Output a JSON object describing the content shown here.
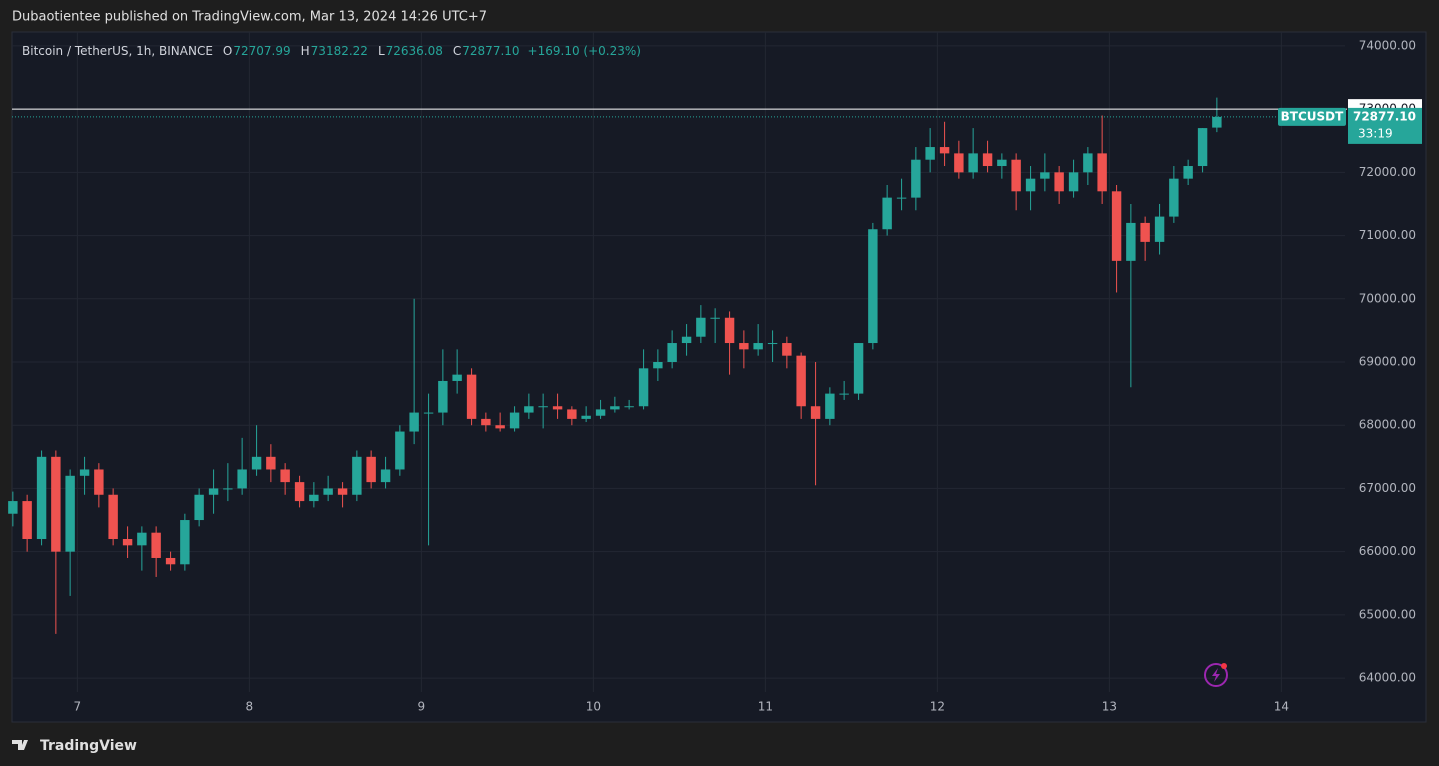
{
  "header": {
    "title": "Dubaotientee published on TradingView.com, Mar 13, 2024 14:26 UTC+7"
  },
  "footer": {
    "brand": "TradingView"
  },
  "chart_data": {
    "type": "candlestick",
    "legend": {
      "symbol": "Bitcoin / TetherUS, 1h, BINANCE",
      "open_label": "O",
      "open": "72707.99",
      "high_label": "H",
      "high": "73182.22",
      "low_label": "L",
      "low": "72636.08",
      "close_label": "C",
      "close": "72877.10",
      "change": "+169.10 (+0.23%)"
    },
    "up_color": "#26a69a",
    "down_color": "#ef5350",
    "grid": true,
    "xlim": [
      6.62,
      14.37
    ],
    "ylim": [
      63780,
      74220
    ],
    "xticks": [
      7,
      8,
      9,
      10,
      11,
      12,
      13,
      14
    ],
    "yticks": [
      {
        "value": 64000,
        "label": "64000.00"
      },
      {
        "value": 65000,
        "label": "65000.00"
      },
      {
        "value": 66000,
        "label": "66000.00"
      },
      {
        "value": 67000,
        "label": "67000.00"
      },
      {
        "value": 68000,
        "label": "68000.00"
      },
      {
        "value": 69000,
        "label": "69000.00"
      },
      {
        "value": 70000,
        "label": "70000.00"
      },
      {
        "value": 71000,
        "label": "71000.00"
      },
      {
        "value": 72000,
        "label": "72000.00"
      },
      {
        "value": 73000,
        "label": "73000.00"
      },
      {
        "value": 74000,
        "label": "74000.00"
      }
    ],
    "hline": {
      "value": 73000,
      "label": "73000.00"
    },
    "last_price": {
      "value": 72877.1,
      "label": "72877.10",
      "symbol": "BTCUSDT",
      "countdown": "33:19"
    },
    "x": [
      6.625,
      6.708,
      6.792,
      6.875,
      6.958,
      7.042,
      7.125,
      7.208,
      7.292,
      7.375,
      7.458,
      7.542,
      7.625,
      7.708,
      7.792,
      7.875,
      7.958,
      8.042,
      8.125,
      8.208,
      8.292,
      8.375,
      8.458,
      8.542,
      8.625,
      8.708,
      8.792,
      8.875,
      8.958,
      9.042,
      9.125,
      9.208,
      9.292,
      9.375,
      9.458,
      9.542,
      9.625,
      9.708,
      9.792,
      9.875,
      9.958,
      10.042,
      10.125,
      10.208,
      10.292,
      10.375,
      10.458,
      10.542,
      10.625,
      10.708,
      10.792,
      10.875,
      10.958,
      11.042,
      11.125,
      11.208,
      11.292,
      11.375,
      11.458,
      11.542,
      11.625,
      11.708,
      11.792,
      11.875,
      11.958,
      12.042,
      12.125,
      12.208,
      12.292,
      12.375,
      12.458,
      12.542,
      12.625,
      12.708,
      12.792,
      12.875,
      12.958,
      13.042,
      13.125,
      13.208,
      13.292,
      13.375,
      13.458,
      13.542,
      13.625
    ],
    "candles": [
      [
        66600,
        66950,
        66400,
        66800
      ],
      [
        66800,
        66900,
        66000,
        66200
      ],
      [
        66200,
        67600,
        66100,
        67500
      ],
      [
        67500,
        67600,
        64700,
        66000
      ],
      [
        66000,
        67300,
        65300,
        67200
      ],
      [
        67200,
        67500,
        66900,
        67300
      ],
      [
        67300,
        67400,
        66700,
        66900
      ],
      [
        66900,
        67000,
        66100,
        66200
      ],
      [
        66200,
        66400,
        65900,
        66100
      ],
      [
        66100,
        66400,
        65700,
        66300
      ],
      [
        66300,
        66400,
        65600,
        65900
      ],
      [
        65900,
        66000,
        65700,
        65800
      ],
      [
        65800,
        66600,
        65700,
        66500
      ],
      [
        66500,
        67000,
        66400,
        66900
      ],
      [
        66900,
        67300,
        66600,
        67000
      ],
      [
        67000,
        67400,
        66800,
        67000
      ],
      [
        67000,
        67800,
        66900,
        67300
      ],
      [
        67300,
        68000,
        67200,
        67500
      ],
      [
        67500,
        67700,
        67100,
        67300
      ],
      [
        67300,
        67400,
        66900,
        67100
      ],
      [
        67100,
        67200,
        66700,
        66800
      ],
      [
        66800,
        67100,
        66700,
        66900
      ],
      [
        66900,
        67200,
        66800,
        67000
      ],
      [
        67000,
        67100,
        66700,
        66900
      ],
      [
        66900,
        67600,
        66800,
        67500
      ],
      [
        67500,
        67600,
        67000,
        67100
      ],
      [
        67100,
        67500,
        67000,
        67300
      ],
      [
        67300,
        68000,
        67200,
        67900
      ],
      [
        67900,
        70000,
        67700,
        68200
      ],
      [
        68200,
        68500,
        66100,
        68200
      ],
      [
        68200,
        69200,
        68000,
        68700
      ],
      [
        68700,
        69200,
        68500,
        68800
      ],
      [
        68800,
        68900,
        68000,
        68100
      ],
      [
        68100,
        68200,
        67900,
        68000
      ],
      [
        68000,
        68200,
        67900,
        67950
      ],
      [
        67950,
        68300,
        67900,
        68200
      ],
      [
        68200,
        68500,
        68100,
        68300
      ],
      [
        68300,
        68500,
        67950,
        68300
      ],
      [
        68300,
        68500,
        68100,
        68250
      ],
      [
        68250,
        68300,
        68000,
        68100
      ],
      [
        68100,
        68300,
        68050,
        68150
      ],
      [
        68150,
        68400,
        68100,
        68250
      ],
      [
        68250,
        68450,
        68200,
        68300
      ],
      [
        68300,
        68400,
        68250,
        68300
      ],
      [
        68300,
        69200,
        68250,
        68900
      ],
      [
        68900,
        69200,
        68700,
        69000
      ],
      [
        69000,
        69500,
        68900,
        69300
      ],
      [
        69300,
        69600,
        69100,
        69400
      ],
      [
        69400,
        69900,
        69300,
        69700
      ],
      [
        69700,
        69850,
        69300,
        69700
      ],
      [
        69700,
        69800,
        68800,
        69300
      ],
      [
        69300,
        69500,
        68900,
        69200
      ],
      [
        69200,
        69600,
        69100,
        69300
      ],
      [
        69300,
        69500,
        69000,
        69300
      ],
      [
        69300,
        69400,
        68900,
        69100
      ],
      [
        69100,
        69150,
        68100,
        68300
      ],
      [
        68300,
        69000,
        67050,
        68100
      ],
      [
        68100,
        68600,
        68000,
        68500
      ],
      [
        68500,
        68700,
        68400,
        68500
      ],
      [
        68500,
        69300,
        68400,
        69300
      ],
      [
        69300,
        71200,
        69200,
        71100
      ],
      [
        71100,
        71800,
        71000,
        71600
      ],
      [
        71600,
        71900,
        71400,
        71600
      ],
      [
        71600,
        72400,
        71400,
        72200
      ],
      [
        72200,
        72700,
        72000,
        72400
      ],
      [
        72400,
        72800,
        72100,
        72300
      ],
      [
        72300,
        72500,
        71900,
        72000
      ],
      [
        72000,
        72700,
        71900,
        72300
      ],
      [
        72300,
        72500,
        72000,
        72100
      ],
      [
        72100,
        72300,
        71900,
        72200
      ],
      [
        72200,
        72300,
        71400,
        71700
      ],
      [
        71700,
        72100,
        71400,
        71900
      ],
      [
        71900,
        72300,
        71700,
        72000
      ],
      [
        72000,
        72100,
        71500,
        71700
      ],
      [
        71700,
        72200,
        71600,
        72000
      ],
      [
        72000,
        72400,
        71800,
        72300
      ],
      [
        72300,
        72900,
        71500,
        71700
      ],
      [
        71700,
        71800,
        70100,
        70600
      ],
      [
        70600,
        71500,
        68600,
        71200
      ],
      [
        71200,
        71300,
        70600,
        70900
      ],
      [
        70900,
        71500,
        70700,
        71300
      ],
      [
        71300,
        72100,
        71200,
        71900
      ],
      [
        71900,
        72200,
        71800,
        72100
      ],
      [
        72100,
        72700,
        72000,
        72700
      ],
      [
        72707.99,
        73182.22,
        72636.08,
        72877.1
      ]
    ]
  }
}
